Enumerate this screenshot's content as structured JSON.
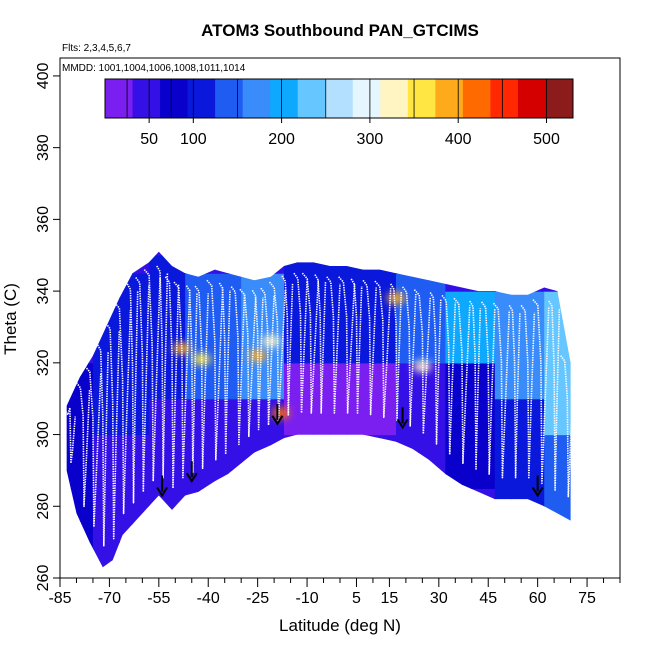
{
  "chart_data": {
    "type": "heatmap",
    "title": "ATOM3 Southbound PAN_GTCIMS",
    "flights_note": "Flts: 2,3,4,5,6,7",
    "dates_note": "MMDD: 1001,1004,1006,1008,1011,1014",
    "xlabel": "Latitude (deg N)",
    "ylabel": "Theta (C)",
    "xlim": [
      -85,
      85
    ],
    "ylim": [
      260,
      405
    ],
    "x_ticks": [
      -85,
      -70,
      -55,
      -40,
      -25,
      -10,
      5,
      15,
      30,
      45,
      60,
      75
    ],
    "x_minor_ticks": [
      -80,
      -75,
      -65,
      -60,
      -50,
      -45,
      -35,
      -30,
      -20,
      -15,
      -5,
      0,
      10,
      20,
      25,
      35,
      40,
      50,
      55,
      65,
      70,
      80,
      85
    ],
    "y_ticks": [
      260,
      280,
      300,
      320,
      340,
      360,
      380,
      400
    ],
    "colorbar": {
      "range": [
        0,
        530
      ],
      "tick_values": [
        50,
        100,
        200,
        300,
        400,
        500
      ],
      "tick_labels": [
        "50",
        "100",
        "200",
        "300",
        "400",
        "500"
      ],
      "segment_edges": [
        0,
        25,
        50,
        75,
        100,
        150,
        200,
        250,
        300,
        350,
        400,
        450,
        500,
        530
      ],
      "colors": [
        "#7a1ff0",
        "#3410e6",
        "#0a00cc",
        "#0a18dc",
        "#1f5cf2",
        "#3a8cfb",
        "#0fa8ff",
        "#66c6ff",
        "#b3e0ff",
        "#e6f6ff",
        "#fff5c2",
        "#ffe642",
        "#ffaa1a",
        "#ff6a00",
        "#ff2800",
        "#d40000",
        "#8c1c1c"
      ]
    },
    "coverage_top": [
      [
        -83,
        308
      ],
      [
        -79,
        316
      ],
      [
        -75,
        322
      ],
      [
        -71,
        330
      ],
      [
        -67,
        338
      ],
      [
        -63,
        345
      ],
      [
        -58,
        348
      ],
      [
        -55,
        351
      ],
      [
        -51,
        347
      ],
      [
        -47,
        345
      ],
      [
        -43,
        344
      ],
      [
        -38,
        346
      ],
      [
        -34,
        345
      ],
      [
        -30,
        344
      ],
      [
        -26,
        343
      ],
      [
        -21,
        344
      ],
      [
        -17,
        347
      ],
      [
        -13,
        348
      ],
      [
        -8,
        348
      ],
      [
        -3,
        347
      ],
      [
        2,
        347
      ],
      [
        7,
        346
      ],
      [
        12,
        346
      ],
      [
        17,
        345
      ],
      [
        22,
        344
      ],
      [
        27,
        343
      ],
      [
        32,
        342
      ],
      [
        37,
        341
      ],
      [
        42,
        340
      ],
      [
        47,
        340
      ],
      [
        52,
        339
      ],
      [
        57,
        339
      ],
      [
        62,
        341
      ],
      [
        66,
        340
      ],
      [
        70,
        320
      ]
    ],
    "coverage_bottom": [
      [
        -83,
        290
      ],
      [
        -80,
        278
      ],
      [
        -76,
        270
      ],
      [
        -72,
        263
      ],
      [
        -69,
        265
      ],
      [
        -66,
        272
      ],
      [
        -62,
        276
      ],
      [
        -58,
        280
      ],
      [
        -55,
        283
      ],
      [
        -51,
        279
      ],
      [
        -47,
        283
      ],
      [
        -43,
        284
      ],
      [
        -38,
        287
      ],
      [
        -34,
        289
      ],
      [
        -30,
        292
      ],
      [
        -26,
        295
      ],
      [
        -21,
        297
      ],
      [
        -17,
        299
      ],
      [
        -13,
        300
      ],
      [
        -8,
        300
      ],
      [
        -3,
        300
      ],
      [
        2,
        300
      ],
      [
        7,
        300
      ],
      [
        12,
        299
      ],
      [
        17,
        298
      ],
      [
        22,
        296
      ],
      [
        27,
        293
      ],
      [
        32,
        289
      ],
      [
        37,
        286
      ],
      [
        42,
        284
      ],
      [
        47,
        282
      ],
      [
        52,
        282
      ],
      [
        57,
        282
      ],
      [
        62,
        280
      ],
      [
        66,
        278
      ],
      [
        70,
        276
      ]
    ],
    "flight_profiles_lat": [
      -82,
      -78,
      -75,
      -72,
      -69,
      -66,
      -63,
      -60,
      -57,
      -54,
      -51,
      -48,
      -45,
      -42,
      -38,
      -35,
      -31,
      -28,
      -25,
      -22,
      -19,
      -16,
      -12,
      -9,
      -6,
      -2,
      2,
      5,
      9,
      13,
      17,
      21,
      25,
      29,
      33,
      37,
      41,
      45,
      49,
      53,
      57,
      61,
      65,
      69
    ],
    "profile_bottom_marks": [
      [
        -54,
        283
      ],
      [
        -45,
        287
      ],
      [
        -19,
        303
      ],
      [
        19,
        302
      ],
      [
        60,
        283
      ]
    ],
    "hotspots": [
      {
        "lat": -48,
        "theta": 324,
        "value": 400
      },
      {
        "lat": -42,
        "theta": 321,
        "value": 360
      },
      {
        "lat": -25,
        "theta": 322,
        "value": 380
      },
      {
        "lat": -21,
        "theta": 326,
        "value": 340
      },
      {
        "lat": -18,
        "theta": 306,
        "value": 420
      },
      {
        "lat": 17,
        "theta": 338,
        "value": 400
      },
      {
        "lat": 25,
        "theta": 319,
        "value": 320
      }
    ],
    "regions": [
      {
        "lat": [
          -83,
          -75
        ],
        "theta": [
          265,
          320
        ],
        "value": 90
      },
      {
        "lat": [
          -75,
          -60
        ],
        "theta": [
          263,
          300
        ],
        "value": 45
      },
      {
        "lat": [
          -60,
          -45
        ],
        "theta": [
          280,
          310
        ],
        "value": 40
      },
      {
        "lat": [
          -75,
          -60
        ],
        "theta": [
          300,
          345
        ],
        "value": 120
      },
      {
        "lat": [
          -60,
          -45
        ],
        "theta": [
          310,
          352
        ],
        "value": 110
      },
      {
        "lat": [
          -45,
          -30
        ],
        "theta": [
          288,
          312
        ],
        "value": 60
      },
      {
        "lat": [
          -45,
          -30
        ],
        "theta": [
          312,
          346
        ],
        "value": 150
      },
      {
        "lat": [
          -30,
          -15
        ],
        "theta": [
          294,
          312
        ],
        "value": 45
      },
      {
        "lat": [
          -30,
          -15
        ],
        "theta": [
          312,
          345
        ],
        "value": 180
      },
      {
        "lat": [
          -15,
          15
        ],
        "theta": [
          300,
          320
        ],
        "value": 30
      },
      {
        "lat": [
          -15,
          15
        ],
        "theta": [
          320,
          348
        ],
        "value": 100
      },
      {
        "lat": [
          15,
          30
        ],
        "theta": [
          295,
          320
        ],
        "value": 60
      },
      {
        "lat": [
          15,
          30
        ],
        "theta": [
          320,
          345
        ],
        "value": 150
      },
      {
        "lat": [
          30,
          45
        ],
        "theta": [
          285,
          318
        ],
        "value": 90
      },
      {
        "lat": [
          30,
          45
        ],
        "theta": [
          318,
          342
        ],
        "value": 190
      },
      {
        "lat": [
          45,
          60
        ],
        "theta": [
          282,
          312
        ],
        "value": 110
      },
      {
        "lat": [
          45,
          60
        ],
        "theta": [
          312,
          340
        ],
        "value": 160
      },
      {
        "lat": [
          60,
          71
        ],
        "theta": [
          276,
          300
        ],
        "value": 150
      },
      {
        "lat": [
          60,
          71
        ],
        "theta": [
          300,
          341
        ],
        "value": 230
      }
    ]
  }
}
